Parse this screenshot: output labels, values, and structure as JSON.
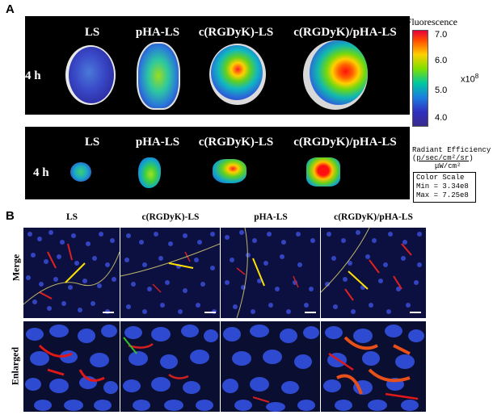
{
  "panel_a": {
    "letter": "A",
    "top_row": {
      "time": "4 h",
      "labels": [
        "LS",
        "pHA-LS",
        "c(RGDyK)-LS",
        "c(RGDyK)/pHA-LS"
      ]
    },
    "bottom_row": {
      "time": "4 h",
      "labels": [
        "LS",
        "pHA-LS",
        "c(RGDyK)-LS",
        "c(RGDyK)/pHA-LS"
      ]
    }
  },
  "colorbar": {
    "title": "Epi-Fluorescence",
    "ticks": [
      "7.0",
      "6.0",
      "5.0",
      "4.0"
    ],
    "multiplier": "x10",
    "exponent": "8",
    "unit_title": "Radiant Efficiency",
    "unit_numerator": "p/sec/cm²/sr",
    "unit_denominator": "μW/cm²",
    "scale_title": "Color Scale",
    "scale_min": "Min = 3.34e8",
    "scale_max": "Max = 7.25e8",
    "colors": [
      "#e8003a",
      "#ff4a00",
      "#ffd000",
      "#7de000",
      "#00c8a0",
      "#1a7ee0",
      "#3030c0",
      "#3a2a8c"
    ]
  },
  "panel_b": {
    "letter": "B",
    "columns": [
      "LS",
      "c(RGDyK)-LS",
      "pHA-LS",
      "c(RGDyK)/pHA-LS"
    ],
    "rows": [
      "Merge",
      "Enlarged"
    ]
  }
}
